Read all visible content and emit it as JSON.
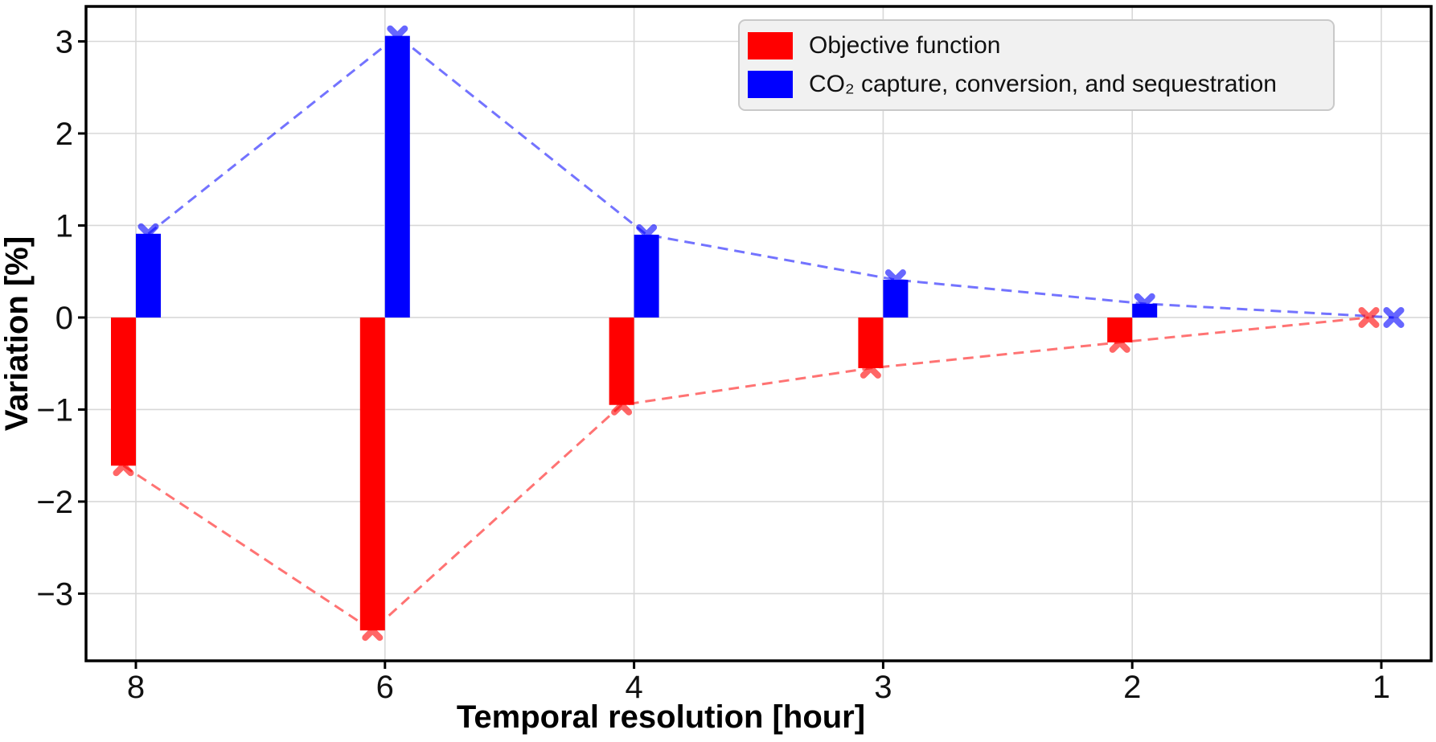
{
  "chart_data": {
    "type": "bar",
    "title": "",
    "xlabel": "Temporal resolution [hour]",
    "ylabel": "Variation [%]",
    "categories": [
      "8",
      "6",
      "4",
      "3",
      "2",
      "1"
    ],
    "series": [
      {
        "name": "Objective function",
        "color": "#ff0000",
        "values": [
          -1.61,
          -3.4,
          -0.95,
          -0.55,
          -0.27,
          0.0
        ]
      },
      {
        "name": "CO₂ capture, conversion, and sequestration",
        "color": "#0000ff",
        "values": [
          0.91,
          3.06,
          0.9,
          0.41,
          0.15,
          0.0
        ]
      }
    ],
    "yticks": [
      3,
      2,
      1,
      0,
      -1,
      -2,
      -3
    ],
    "ylim": [
      -3.73,
      3.38
    ],
    "grid": true,
    "legend_position": "upper right",
    "marker": "X",
    "line_style": "dashed",
    "grid_color": "#d8d8d8",
    "spine_color": "#000000"
  },
  "legend": {
    "items": [
      {
        "label": "Objective function",
        "color": "#ff0000"
      },
      {
        "label": "CO₂ capture, conversion, and sequestration",
        "color": "#0000ff"
      }
    ]
  }
}
